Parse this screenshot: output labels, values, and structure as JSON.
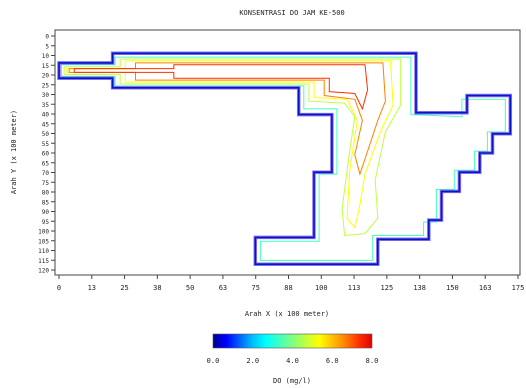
{
  "chart_data": {
    "type": "heatmap",
    "title": "KONSENTRASI DO JAM KE-500",
    "xlabel": "Arah X (x 100 meter)",
    "ylabel": "Arah Y (x 100 meter)",
    "xlim": [
      0,
      180
    ],
    "ylim": [
      0,
      122
    ],
    "y_inverted": true,
    "x_ticks": [
      "0",
      "13",
      "25",
      "38",
      "50",
      "63",
      "75",
      "88",
      "100",
      "113",
      "125",
      "138",
      "150",
      "163",
      "175"
    ],
    "y_ticks": [
      "0",
      "5",
      "10",
      "15",
      "20",
      "25",
      "30",
      "35",
      "40",
      "45",
      "50",
      "55",
      "60",
      "65",
      "70",
      "75",
      "80",
      "85",
      "90",
      "95",
      "100",
      "105",
      "110",
      "115",
      "120"
    ],
    "grid": false,
    "colorbar": {
      "label": "DO (mg/l)",
      "min": 0.0,
      "max": 8.0,
      "tick_labels": [
        "0.0",
        "2.0",
        "4.0",
        "6.0",
        "8.0"
      ],
      "tick_values": [
        0,
        2,
        4,
        6,
        8
      ],
      "colors": [
        "#000090",
        "#0000ff",
        "#0060ff",
        "#00c0ff",
        "#00ffff",
        "#40ffc0",
        "#80ff80",
        "#c0ff40",
        "#ffff00",
        "#ffc000",
        "#ff8000",
        "#ff3000",
        "#e00000"
      ]
    },
    "domain_outline": [
      [
        21,
        9
      ],
      [
        140,
        9
      ],
      [
        140,
        40
      ],
      [
        160,
        40
      ],
      [
        160,
        31
      ],
      [
        177,
        31
      ],
      [
        177,
        51
      ],
      [
        170,
        51
      ],
      [
        170,
        61
      ],
      [
        165,
        61
      ],
      [
        165,
        71
      ],
      [
        157,
        71
      ],
      [
        157,
        81
      ],
      [
        150,
        81
      ],
      [
        150,
        96
      ],
      [
        145,
        96
      ],
      [
        145,
        106
      ],
      [
        125,
        106
      ],
      [
        125,
        119
      ],
      [
        77,
        119
      ],
      [
        77,
        105
      ],
      [
        100,
        105
      ],
      [
        100,
        71
      ],
      [
        107,
        71
      ],
      [
        107,
        41
      ],
      [
        94,
        41
      ],
      [
        94,
        27
      ],
      [
        21,
        27
      ],
      [
        21,
        22
      ],
      [
        0,
        22
      ],
      [
        0,
        14
      ],
      [
        21,
        14
      ]
    ],
    "contours": [
      {
        "value": 3.0,
        "points": [
          [
            22,
            11
          ],
          [
            138,
            11
          ],
          [
            138,
            41
          ],
          [
            158,
            42
          ],
          [
            158,
            33
          ],
          [
            175,
            33
          ],
          [
            175,
            50
          ],
          [
            168,
            50
          ],
          [
            168,
            60
          ],
          [
            163,
            60
          ],
          [
            163,
            70
          ],
          [
            155,
            70
          ],
          [
            155,
            80
          ],
          [
            148,
            80
          ],
          [
            148,
            97
          ],
          [
            143,
            97
          ],
          [
            143,
            104
          ],
          [
            123,
            104
          ],
          [
            123,
            117
          ],
          [
            79,
            117
          ],
          [
            79,
            107
          ],
          [
            102,
            107
          ],
          [
            102,
            72
          ],
          [
            109,
            72
          ],
          [
            109,
            38
          ],
          [
            96,
            38
          ],
          [
            96,
            26
          ],
          [
            22,
            26
          ],
          [
            22,
            21
          ],
          [
            1,
            21
          ],
          [
            1,
            15
          ],
          [
            22,
            15
          ]
        ]
      },
      {
        "value": 4.5,
        "points": [
          [
            24,
            12
          ],
          [
            134,
            12
          ],
          [
            134,
            36
          ],
          [
            128,
            50
          ],
          [
            124,
            75
          ],
          [
            125,
            95
          ],
          [
            120,
            103
          ],
          [
            112,
            104
          ],
          [
            111,
            90
          ],
          [
            114,
            60
          ],
          [
            116,
            42
          ],
          [
            112,
            35
          ],
          [
            98,
            34
          ],
          [
            98,
            25
          ],
          [
            24,
            25
          ],
          [
            24,
            20
          ],
          [
            2,
            20
          ],
          [
            2,
            16
          ],
          [
            24,
            16
          ]
        ]
      },
      {
        "value": 5.5,
        "points": [
          [
            26,
            13
          ],
          [
            130,
            13
          ],
          [
            131,
            36
          ],
          [
            126,
            50
          ],
          [
            120,
            72
          ],
          [
            118,
            88
          ],
          [
            116,
            100
          ],
          [
            113,
            95
          ],
          [
            114,
            70
          ],
          [
            117,
            44
          ],
          [
            113,
            33
          ],
          [
            100,
            32
          ],
          [
            100,
            24
          ],
          [
            26,
            24
          ],
          [
            26,
            19
          ],
          [
            3,
            19
          ],
          [
            3,
            17
          ],
          [
            26,
            17
          ]
        ]
      },
      {
        "value": 6.5,
        "points": [
          [
            30,
            14
          ],
          [
            127,
            14
          ],
          [
            128,
            34
          ],
          [
            125,
            44
          ],
          [
            121,
            60
          ],
          [
            118,
            72
          ],
          [
            116,
            62
          ],
          [
            119,
            44
          ],
          [
            116,
            33
          ],
          [
            104,
            31
          ],
          [
            104,
            23
          ],
          [
            30,
            23
          ],
          [
            30,
            19
          ],
          [
            4,
            19
          ],
          [
            4,
            17
          ],
          [
            30,
            17
          ]
        ]
      },
      {
        "value": 7.5,
        "points": [
          [
            45,
            15
          ],
          [
            120,
            15
          ],
          [
            121,
            28
          ],
          [
            119,
            38
          ],
          [
            116,
            30
          ],
          [
            106,
            29
          ],
          [
            106,
            22
          ],
          [
            45,
            22
          ],
          [
            45,
            19
          ],
          [
            6,
            19
          ],
          [
            6,
            17
          ],
          [
            45,
            17
          ]
        ]
      }
    ]
  }
}
